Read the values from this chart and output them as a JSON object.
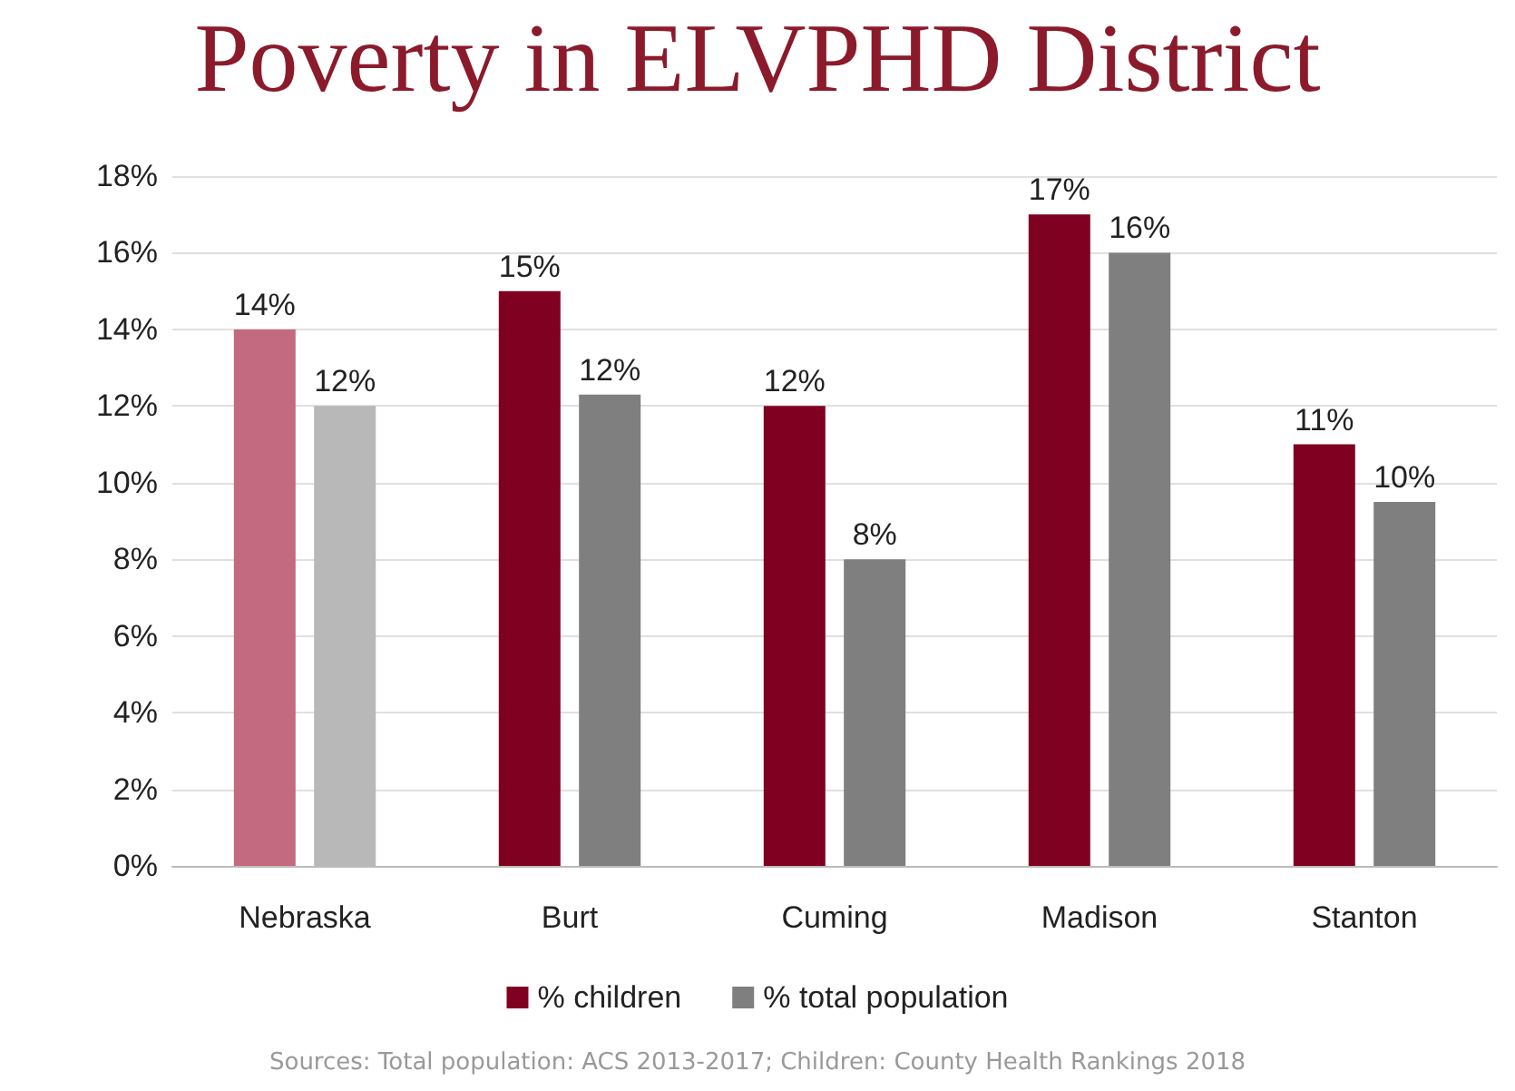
{
  "chart_data": {
    "type": "bar",
    "title": "Poverty in ELVPHD District",
    "categories": [
      "Nebraska",
      "Burt",
      "Cuming",
      "Madison",
      "Stanton"
    ],
    "series": [
      {
        "name": "% children",
        "color": "#7f0020",
        "colors": [
          "#c46a80",
          "#7f0020",
          "#7f0020",
          "#7f0020",
          "#7f0020"
        ],
        "values": [
          14,
          15,
          12,
          17,
          11
        ],
        "value_labels": [
          "14%",
          "15%",
          "12%",
          "17%",
          "11%"
        ]
      },
      {
        "name": "% total population",
        "color": "#7f7f7f",
        "colors": [
          "#b8b8b8",
          "#7f7f7f",
          "#7f7f7f",
          "#7f7f7f",
          "#7f7f7f"
        ],
        "values": [
          12,
          12.3,
          8,
          16,
          9.5
        ],
        "value_labels": [
          "12%",
          "12%",
          "8%",
          "16%",
          "10%"
        ]
      }
    ],
    "ylim": [
      0,
      18
    ],
    "yticks": [
      {
        "value": 0,
        "label": "0%"
      },
      {
        "value": 2,
        "label": "2%"
      },
      {
        "value": 4,
        "label": "4%"
      },
      {
        "value": 6,
        "label": "6%"
      },
      {
        "value": 8,
        "label": "8%"
      },
      {
        "value": 10,
        "label": "10%"
      },
      {
        "value": 12,
        "label": "12%"
      },
      {
        "value": 14,
        "label": "14%"
      },
      {
        "value": 16,
        "label": "16%"
      },
      {
        "value": 18,
        "label": "18%"
      }
    ],
    "grid": "y",
    "legend": "bottom",
    "annotations": [
      "Sources: Total population: ACS 2013-2017; Children: County Health Rankings 2018"
    ]
  }
}
